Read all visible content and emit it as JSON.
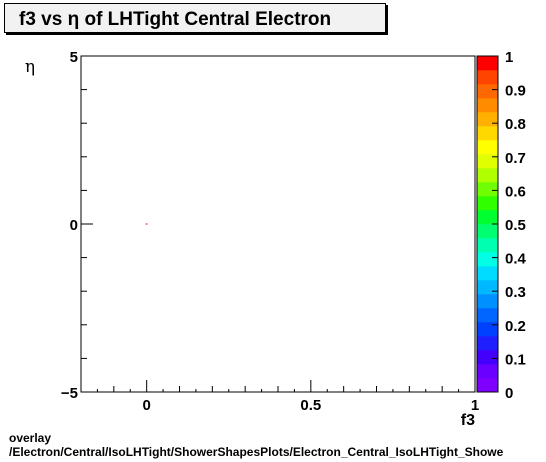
{
  "chart_data": {
    "type": "heatmap",
    "title": "f3 vs  η of LHTight Central  Electron",
    "xlabel": "f3",
    "ylabel": "η",
    "xlim": [
      -0.2,
      1.0
    ],
    "ylim": [
      -5,
      5
    ],
    "x_tick_labels": [
      "0",
      "0.5",
      "1"
    ],
    "y_tick_labels": [
      "5",
      "0",
      "−5"
    ],
    "colorbar": {
      "range": [
        0,
        1
      ],
      "tick_labels": [
        "0",
        "0.1",
        "0.2",
        "0.3",
        "0.4",
        "0.5",
        "0.6",
        "0.7",
        "0.8",
        "0.9",
        "1"
      ],
      "colors": [
        "#7f00ff",
        "#6a00ff",
        "#4400ff",
        "#2020ff",
        "#0040ff",
        "#0066ff",
        "#0090ff",
        "#00b8ff",
        "#00dcff",
        "#00ffe4",
        "#00ffb0",
        "#00ff70",
        "#00ff30",
        "#30ff00",
        "#70ff00",
        "#b0ff00",
        "#e0ff00",
        "#ffff00",
        "#ffd800",
        "#ffb000",
        "#ff8c00",
        "#ff6800",
        "#ff4400",
        "#ff0000"
      ]
    },
    "points": [
      {
        "x": 0.0,
        "y": 0.0,
        "value": 1.0
      }
    ]
  },
  "footer": {
    "line1": "overlay",
    "line2": "/Electron/Central/IsoLHTight/ShowerShapesPlots/Electron_Central_IsoLHTight_Showe"
  }
}
